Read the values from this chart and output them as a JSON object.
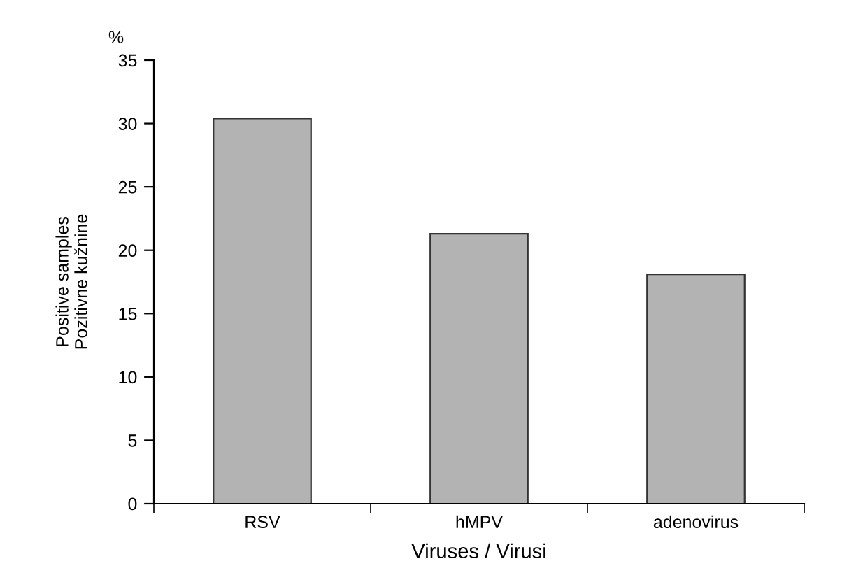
{
  "chart_data": {
    "type": "bar",
    "categories": [
      "RSV",
      "hMPV",
      "adenovirus"
    ],
    "values": [
      30.4,
      21.3,
      18.1
    ],
    "color": "#b3b3b3",
    "xlabel": "Viruses / Virusi",
    "ylabel": "Positive samples\nPozitivne kužnine",
    "annotations": [
      "%"
    ],
    "ylim": [
      0,
      35
    ],
    "yticks": [
      0,
      5,
      10,
      15,
      20,
      25,
      30,
      35
    ],
    "grid": false,
    "legend": false
  }
}
